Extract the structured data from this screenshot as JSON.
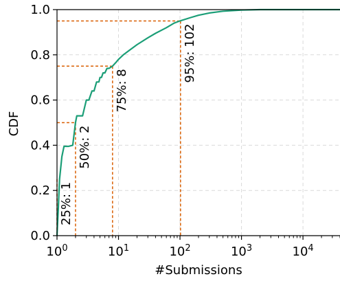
{
  "chart_data": {
    "type": "line",
    "xlabel": "#Submissions",
    "ylabel": "CDF",
    "x_scale": "log",
    "xlim": [
      1,
      40000
    ],
    "ylim": [
      0,
      1
    ],
    "grid": true,
    "x_tick_labels": [
      "10^0",
      "10^1",
      "10^2",
      "10^3",
      "10^4"
    ],
    "x_ticks": [
      1,
      10,
      100,
      1000,
      10000
    ],
    "y_ticks": [
      0.0,
      0.2,
      0.4,
      0.6,
      0.8,
      1.0
    ],
    "y_tick_labels": [
      "0.0",
      "0.2",
      "0.4",
      "0.6",
      "0.8",
      "1.0"
    ],
    "series": [
      {
        "color": "#1b9e77",
        "x": [
          1,
          1.05,
          1.1,
          1.2,
          1.3,
          1.45,
          1.55,
          1.8,
          2,
          2.1,
          2.4,
          2.6,
          3,
          3.3,
          3.7,
          4,
          4.4,
          4.8,
          5,
          5.3,
          5.6,
          6,
          6.5,
          7,
          8,
          9,
          10,
          12,
          15,
          20,
          30,
          40,
          60,
          80,
          100,
          150,
          200,
          300,
          500,
          1000,
          2000,
          5000,
          10000,
          40000
        ],
        "y": [
          0.0,
          0.12,
          0.25,
          0.35,
          0.395,
          0.395,
          0.395,
          0.4,
          0.5,
          0.53,
          0.53,
          0.53,
          0.6,
          0.6,
          0.64,
          0.64,
          0.68,
          0.68,
          0.7,
          0.7,
          0.72,
          0.72,
          0.74,
          0.74,
          0.75,
          0.765,
          0.78,
          0.8,
          0.82,
          0.845,
          0.875,
          0.895,
          0.92,
          0.94,
          0.95,
          0.965,
          0.975,
          0.985,
          0.993,
          0.998,
          1.0,
          1.0,
          1.0,
          1.0
        ]
      }
    ],
    "percentile_color": "#d95f02",
    "percentiles": [
      {
        "label": "25%: 1",
        "x": 1,
        "y": 0.25
      },
      {
        "label": "50%: 2",
        "x": 2,
        "y": 0.5
      },
      {
        "label": "75%: 8",
        "x": 8,
        "y": 0.75
      },
      {
        "label": "95%: 102",
        "x": 102,
        "y": 0.95
      }
    ]
  }
}
